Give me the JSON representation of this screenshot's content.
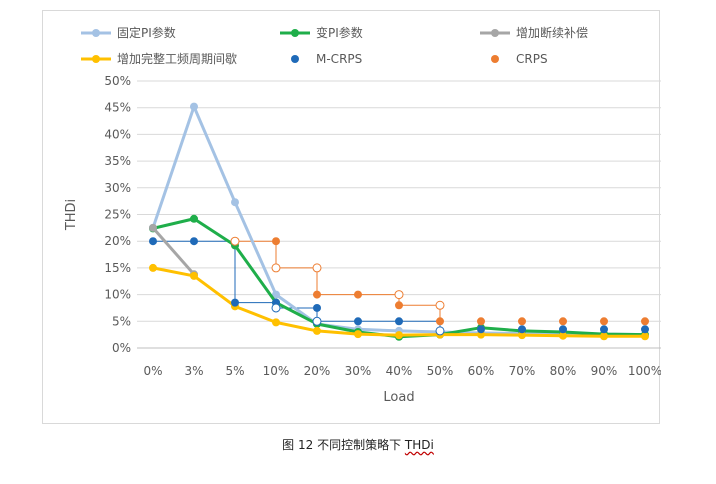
{
  "chart_data": {
    "type": "line",
    "title": "",
    "xlabel": "Load",
    "ylabel": "THDi",
    "categories": [
      "0%",
      "3%",
      "5%",
      "10%",
      "20%",
      "30%",
      "40%",
      "50%",
      "60%",
      "70%",
      "80%",
      "90%",
      "100%"
    ],
    "yticks": [
      "0%",
      "5%",
      "10%",
      "15%",
      "20%",
      "25%",
      "30%",
      "35%",
      "40%",
      "45%",
      "50%"
    ],
    "ylim": [
      0,
      50
    ],
    "grid": true,
    "legend_position": "top",
    "series": [
      {
        "name": "固定PI参数",
        "kind": "line",
        "color": "#a4c2e4",
        "values": [
          22.5,
          45.2,
          27.3,
          10,
          4.5,
          3.5,
          3.2,
          3.0,
          2.8,
          2.7,
          2.6,
          2.6,
          2.5
        ]
      },
      {
        "name": "变PI参数",
        "kind": "line",
        "color": "#1fae4a",
        "values": [
          22.4,
          24.2,
          19.2,
          8.5,
          4.5,
          3.0,
          2.1,
          2.5,
          3.8,
          3.2,
          3.0,
          2.6,
          2.5
        ]
      },
      {
        "name": "增加断续补偿",
        "kind": "line",
        "color": "#a6a6a6",
        "values": [
          22.5,
          13.8,
          null,
          null,
          null,
          null,
          null,
          null,
          null,
          null,
          null,
          null,
          null
        ]
      },
      {
        "name": "增加完整工频周期间歇",
        "kind": "line",
        "color": "#ffc000",
        "values": [
          15,
          13.5,
          7.8,
          4.8,
          3.2,
          2.6,
          2.4,
          2.5,
          2.5,
          2.4,
          2.3,
          2.2,
          2.2
        ]
      },
      {
        "name": "M-CRPS",
        "kind": "scatter",
        "color": "#1f6ab8",
        "values": [
          20,
          20,
          8.5,
          8.5,
          7.5,
          5,
          5,
          3.2,
          3.5,
          3.5,
          3.5,
          3.5,
          3.5
        ]
      },
      {
        "name": "CRPS",
        "kind": "scatter",
        "color": "#ed7d31",
        "values": [
          null,
          null,
          20,
          20,
          10,
          10,
          8,
          5,
          5,
          5,
          5,
          5,
          5
        ]
      }
    ],
    "step_overlays": [
      {
        "series": "M-CRPS",
        "color": "#1f6ab8",
        "points": [
          [
            0,
            20
          ],
          [
            2,
            20
          ],
          [
            2,
            8.5
          ],
          [
            3,
            8.5
          ],
          [
            3,
            7.5
          ],
          [
            4,
            7.5
          ],
          [
            4,
            5
          ],
          [
            7,
            5
          ],
          [
            7,
            3.2
          ]
        ],
        "hollow": [
          [
            3,
            7.5
          ],
          [
            4,
            5
          ],
          [
            7,
            3.2
          ]
        ]
      },
      {
        "series": "CRPS",
        "color": "#ed7d31",
        "points": [
          [
            2,
            20
          ],
          [
            3,
            20
          ],
          [
            3,
            15
          ],
          [
            4,
            15
          ],
          [
            4,
            10
          ],
          [
            6,
            10
          ],
          [
            6,
            8
          ],
          [
            7,
            8
          ],
          [
            7,
            5
          ]
        ],
        "hollow": [
          [
            2,
            20
          ],
          [
            3,
            15
          ],
          [
            4,
            15
          ],
          [
            6,
            10
          ],
          [
            7,
            8
          ]
        ]
      }
    ]
  },
  "caption": {
    "prefix": "图  12 不同控制策略下 ",
    "suffix": "THDi"
  }
}
